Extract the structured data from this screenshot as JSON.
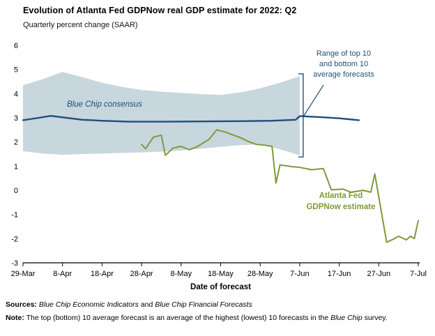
{
  "header": {
    "title": "Evolution of Atlanta Fed GDPNow real GDP estimate for 2022: Q2",
    "subtitle": "Quarterly percent change (SAAR)"
  },
  "chart_data": {
    "type": "line",
    "title": "Evolution of Atlanta Fed GDPNow real GDP estimate for 2022: Q2",
    "subtitle": "Quarterly percent change (SAAR)",
    "xlabel": "Date of forecast",
    "ylabel": "Quarterly percent change (SAAR)",
    "ylim": [
      -3,
      6
    ],
    "yticks": [
      6,
      5,
      4,
      3,
      2,
      1,
      0,
      -1,
      -2,
      -3
    ],
    "x_axis": {
      "domain_days": [
        0,
        100
      ],
      "tick_days": [
        0,
        10,
        20,
        30,
        40,
        50,
        60,
        70,
        80,
        90,
        100
      ],
      "tick_labels": [
        "29-Mar",
        "8-Apr",
        "18-Apr",
        "28-Apr",
        "8-May",
        "18-May",
        "28-May",
        "7-Jun",
        "17-Jun",
        "27-Jun",
        "7-Jul"
      ]
    },
    "colors": {
      "navy": "#1f4e79",
      "green": "#7f9a3a",
      "band": "#c8d6de",
      "axis": "#000000"
    },
    "band": {
      "label": "Range of top 10 and bottom 10 average forecasts",
      "points": [
        {
          "day": 0,
          "top": 4.35,
          "bottom": 1.62
        },
        {
          "day": 5,
          "top": 4.6,
          "bottom": 1.52
        },
        {
          "day": 10,
          "top": 4.9,
          "bottom": 1.47
        },
        {
          "day": 15,
          "top": 4.68,
          "bottom": 1.5
        },
        {
          "day": 20,
          "top": 4.45,
          "bottom": 1.52
        },
        {
          "day": 25,
          "top": 4.28,
          "bottom": 1.55
        },
        {
          "day": 30,
          "top": 4.15,
          "bottom": 1.57
        },
        {
          "day": 35,
          "top": 4.08,
          "bottom": 1.6
        },
        {
          "day": 40,
          "top": 4.03,
          "bottom": 1.65
        },
        {
          "day": 45,
          "top": 3.98,
          "bottom": 1.72
        },
        {
          "day": 50,
          "top": 3.95,
          "bottom": 1.8
        },
        {
          "day": 55,
          "top": 4.05,
          "bottom": 1.87
        },
        {
          "day": 60,
          "top": 4.22,
          "bottom": 1.9
        },
        {
          "day": 65,
          "top": 4.45,
          "bottom": 1.7
        },
        {
          "day": 70,
          "top": 4.72,
          "bottom": 1.45
        }
      ]
    },
    "series": [
      {
        "name": "Blue Chip consensus",
        "color": "#1f4e79",
        "width": 2.4,
        "points": [
          [
            0,
            2.9
          ],
          [
            4,
            3.0
          ],
          [
            7,
            3.08
          ],
          [
            10,
            3.02
          ],
          [
            15,
            2.92
          ],
          [
            20,
            2.88
          ],
          [
            27,
            2.84
          ],
          [
            35,
            2.84
          ],
          [
            45,
            2.85
          ],
          [
            55,
            2.86
          ],
          [
            63,
            2.88
          ],
          [
            69,
            2.92
          ],
          [
            70,
            3.07
          ],
          [
            75,
            3.03
          ],
          [
            80,
            2.98
          ],
          [
            85,
            2.9
          ]
        ]
      },
      {
        "name": "Atlanta Fed GDPNow estimate",
        "color": "#7f9a3a",
        "width": 2,
        "points": [
          [
            30,
            1.9
          ],
          [
            31,
            1.72
          ],
          [
            33,
            2.2
          ],
          [
            35,
            2.28
          ],
          [
            36,
            1.45
          ],
          [
            38,
            1.75
          ],
          [
            40,
            1.82
          ],
          [
            42,
            1.68
          ],
          [
            44,
            1.8
          ],
          [
            47,
            2.1
          ],
          [
            49,
            2.5
          ],
          [
            51,
            2.42
          ],
          [
            53,
            2.3
          ],
          [
            55,
            2.18
          ],
          [
            57,
            2.02
          ],
          [
            59,
            1.9
          ],
          [
            61,
            1.87
          ],
          [
            63,
            1.82
          ],
          [
            64,
            0.3
          ],
          [
            65,
            1.05
          ],
          [
            68,
            0.98
          ],
          [
            70,
            0.95
          ],
          [
            73,
            0.85
          ],
          [
            76,
            0.9
          ],
          [
            78,
            0.02
          ],
          [
            81,
            0.05
          ],
          [
            83,
            -0.08
          ],
          [
            86,
            0.0
          ],
          [
            88,
            -0.08
          ],
          [
            89,
            0.68
          ],
          [
            92,
            -2.15
          ],
          [
            94,
            -2.0
          ],
          [
            95,
            -1.9
          ],
          [
            97,
            -2.05
          ],
          [
            98,
            -1.9
          ],
          [
            99,
            -2.0
          ],
          [
            100,
            -1.25
          ]
        ]
      }
    ],
    "annotations": {
      "range_label_lines": [
        "Range of top 10",
        "and bottom 10",
        "average forecasts"
      ],
      "blue_chip_label": "Blue Chip consensus",
      "gdpnow_label_lines": [
        "Atlanta Fed",
        "GDPNow estimate"
      ],
      "bracket": {
        "day": 70,
        "top": 4.82,
        "bottom": 1.38
      }
    }
  },
  "footer": {
    "sources_label": "Sources:",
    "sources_space": " ",
    "sources_italic1": "Blue Chip Economic Indicators",
    "sources_and": " and ",
    "sources_italic2": "Blue Chip Financial Forecasts",
    "note_label": "Note:",
    "note_pre": " The top (bottom) 10 average forecast is an average of the highest (lowest) 10 forecasts in the ",
    "note_italic": "Blue Chip",
    "note_post": " survey."
  }
}
